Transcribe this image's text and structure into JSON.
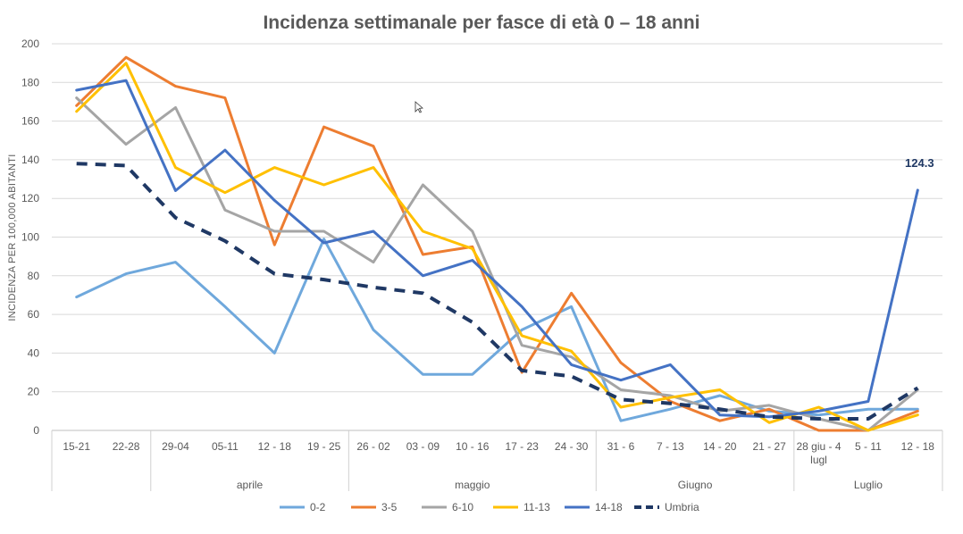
{
  "chart_data": {
    "type": "line",
    "title": "Incidenza settimanale per fasce di età 0 – 18 anni",
    "xlabel": "",
    "ylabel": "INCIDENZA PER 100,000 ABITANTI",
    "ylim": [
      0,
      200
    ],
    "yticks": [
      0,
      20,
      40,
      60,
      80,
      100,
      120,
      140,
      160,
      180,
      200
    ],
    "grid": true,
    "legend_position": "bottom",
    "categories": [
      "15-21",
      "22-28",
      "29-04",
      "05-11",
      "12 - 18",
      "19 - 25",
      "26 - 02",
      "03 - 09",
      "10 - 16",
      "17 - 23",
      "24 - 30",
      "31 - 6",
      "7 - 13",
      "14 - 20",
      "21 - 27",
      "28 giu - 4 lugl",
      "5 - 11",
      "12 - 18"
    ],
    "month_groups": [
      {
        "label": "",
        "start": 0,
        "end": 1
      },
      {
        "label": "aprile",
        "start": 2,
        "end": 5
      },
      {
        "label": "maggio",
        "start": 6,
        "end": 10
      },
      {
        "label": "Giugno",
        "start": 11,
        "end": 14
      },
      {
        "label": "Luglio",
        "start": 15,
        "end": 17
      }
    ],
    "series": [
      {
        "name": "0-2",
        "color": "#6FA8DC",
        "dashed": false,
        "values": [
          69,
          81,
          87,
          64,
          40,
          99,
          52,
          29,
          29,
          52,
          64,
          5,
          11,
          18,
          10,
          8,
          11,
          11
        ]
      },
      {
        "name": "3-5",
        "color": "#ED7D31",
        "dashed": false,
        "values": [
          168,
          193,
          178,
          172,
          96,
          157,
          147,
          91,
          95,
          30,
          71,
          35,
          15,
          5,
          11,
          0,
          0,
          10
        ]
      },
      {
        "name": "6-10",
        "color": "#A5A5A5",
        "dashed": false,
        "values": [
          172,
          148,
          167,
          114,
          103,
          103,
          87,
          127,
          103,
          44,
          38,
          21,
          18,
          10,
          13,
          6,
          0,
          21
        ]
      },
      {
        "name": "11-13",
        "color": "#FFC000",
        "dashed": false,
        "values": [
          165,
          190,
          136,
          123,
          136,
          127,
          136,
          103,
          94,
          49,
          41,
          12,
          17,
          21,
          4,
          12,
          0,
          8
        ]
      },
      {
        "name": "14-18",
        "color": "#4472C4",
        "dashed": false,
        "values": [
          176,
          181,
          124,
          145,
          119,
          97,
          103,
          80,
          88,
          64,
          34,
          26,
          34,
          8,
          7,
          10,
          15,
          124.3
        ]
      },
      {
        "name": "Umbria",
        "color": "#1F3864",
        "dashed": true,
        "values": [
          138,
          137,
          110,
          98,
          81,
          78,
          74,
          71,
          56,
          31,
          28,
          16,
          14,
          11,
          7,
          6,
          6,
          22
        ]
      }
    ],
    "annotations": [
      {
        "series": "14-18",
        "index": 17,
        "text": "124.3"
      }
    ]
  }
}
